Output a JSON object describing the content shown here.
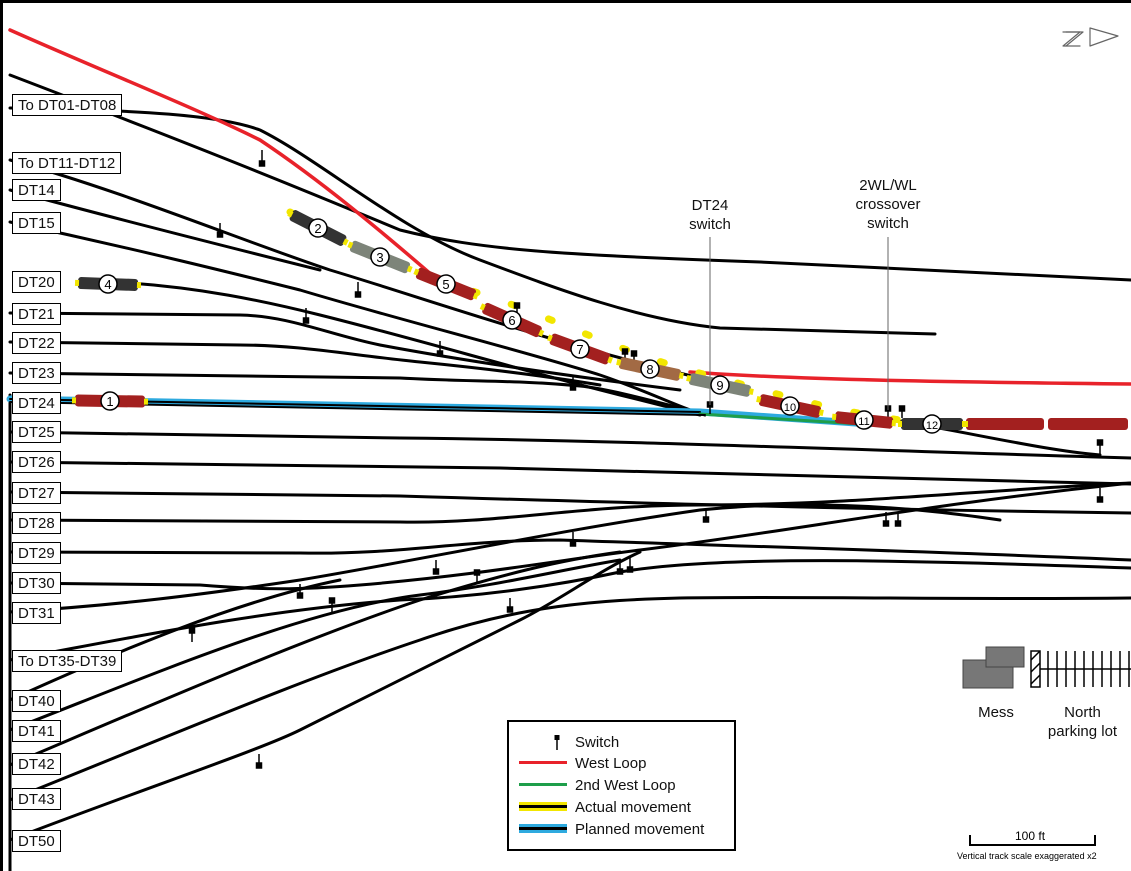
{
  "track_labels": [
    {
      "id": "dt01",
      "text": "To DT01-DT08"
    },
    {
      "id": "dt11",
      "text": "To DT11-DT12"
    },
    {
      "id": "dt14",
      "text": "DT14"
    },
    {
      "id": "dt15",
      "text": "DT15"
    },
    {
      "id": "dt20",
      "text": "DT20"
    },
    {
      "id": "dt21",
      "text": "DT21"
    },
    {
      "id": "dt22",
      "text": "DT22"
    },
    {
      "id": "dt23",
      "text": "DT23"
    },
    {
      "id": "dt24",
      "text": "DT24"
    },
    {
      "id": "dt25",
      "text": "DT25"
    },
    {
      "id": "dt26",
      "text": "DT26"
    },
    {
      "id": "dt27",
      "text": "DT27"
    },
    {
      "id": "dt28",
      "text": "DT28"
    },
    {
      "id": "dt29",
      "text": "DT29"
    },
    {
      "id": "dt30",
      "text": "DT30"
    },
    {
      "id": "dt31",
      "text": "DT31"
    },
    {
      "id": "dt35",
      "text": "To DT35-DT39"
    },
    {
      "id": "dt40",
      "text": "DT40"
    },
    {
      "id": "dt41",
      "text": "DT41"
    },
    {
      "id": "dt42",
      "text": "DT42"
    },
    {
      "id": "dt43",
      "text": "DT43"
    },
    {
      "id": "dt50",
      "text": "DT50"
    }
  ],
  "annotations": {
    "dt24_switch": [
      "DT24",
      "switch"
    ],
    "crossover_switch": [
      "2WL/WL",
      "crossover",
      "switch"
    ]
  },
  "cars": [
    "1",
    "2",
    "3",
    "4",
    "5",
    "6",
    "7",
    "8",
    "9",
    "10",
    "11",
    "12"
  ],
  "legend": {
    "items": [
      {
        "key": "switch",
        "label": "Switch"
      },
      {
        "key": "west_loop",
        "label": "West Loop"
      },
      {
        "key": "second_west_loop",
        "label": "2nd West Loop"
      },
      {
        "key": "actual",
        "label": "Actual movement"
      },
      {
        "key": "planned",
        "label": "Planned movement"
      }
    ]
  },
  "places": {
    "mess": "Mess",
    "parking": [
      "North",
      "parking lot"
    ]
  },
  "scale": {
    "bar_label": "100 ft",
    "note": "Vertical track scale exaggerated x2"
  },
  "colors": {
    "west_loop": "#e8222a",
    "second_west_loop": "#1e9e4a",
    "actual": "#f2e600",
    "planned": "#2eaadf",
    "car_red": "#a3201f",
    "car_dark": "#333333",
    "car_gray": "#7d8479",
    "car_brown": "#a26a44"
  }
}
